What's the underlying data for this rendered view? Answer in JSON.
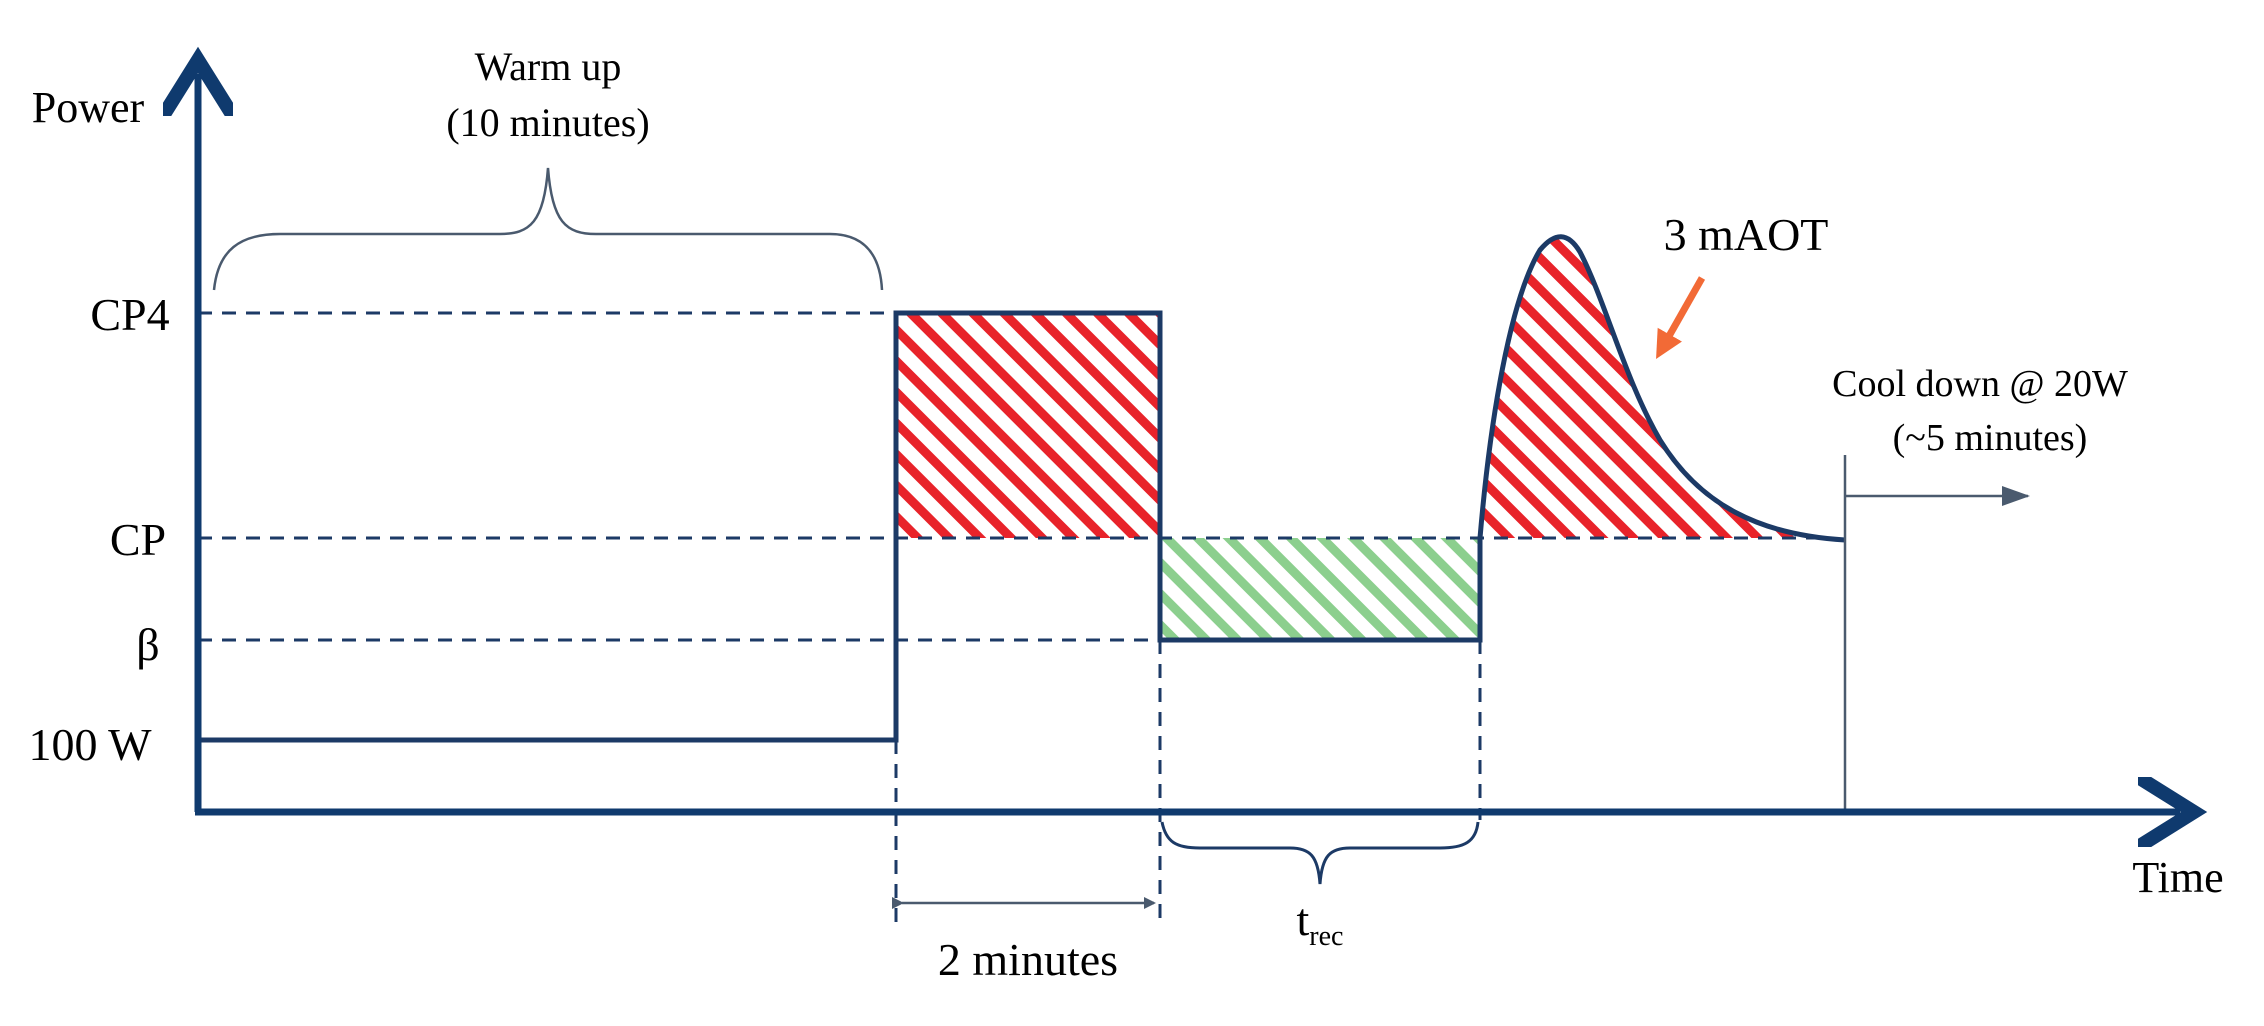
{
  "axes": {
    "y_label": "Power",
    "x_label": "Time"
  },
  "levels": [
    {
      "label": "CP4"
    },
    {
      "label": "CP"
    },
    {
      "label": "β"
    },
    {
      "label": "100 W"
    }
  ],
  "annotations": {
    "warmup_line1": "Warm up",
    "warmup_line2": "(10 minutes)",
    "two_minutes": "2 minutes",
    "trec_main": "t",
    "trec_sub": "rec",
    "peak_label": "3 mAOT",
    "cooldown_line1": "Cool down @ 20W",
    "cooldown_line2": "(~5 minutes)"
  },
  "colors": {
    "line": "#1c3a66",
    "axis": "#0f3a6e",
    "surplus_hatch": "#e8232a",
    "recovery_hatch": "#8ccf8e",
    "arrow_accent": "#f26a36",
    "bracket": "#4a5a6e"
  }
}
